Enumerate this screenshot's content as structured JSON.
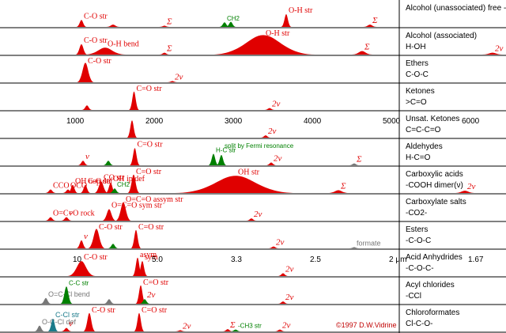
{
  "chart_data": {
    "type": "area",
    "x_axis_cm": {
      "ticks": [
        "1000",
        "2000",
        "3000",
        "4000",
        "5000",
        "6000"
      ],
      "unit": ""
    },
    "x_axis_um": {
      "ticks": [
        "10",
        "5.0",
        "3.3",
        "2.5",
        "2 μm",
        "1.67"
      ]
    },
    "series": [
      {
        "name": "Alcohol (unassociated) free -OH",
        "formula": "",
        "peaks": [
          {
            "x": 1050,
            "h": 0.3,
            "w": 30,
            "color": "#e00000",
            "label": "C-O str"
          },
          {
            "x": 1450,
            "h": 0.1,
            "w": 40,
            "color": "#e00000",
            "label": ""
          },
          {
            "x": 2100,
            "h": 0.05,
            "w": 30,
            "color": "#e00000",
            "label": "Σ"
          },
          {
            "x": 2860,
            "h": 0.2,
            "w": 25,
            "color": "#008000",
            "label": "CH2"
          },
          {
            "x": 2940,
            "h": 0.22,
            "w": 25,
            "color": "#008000",
            "label": ""
          },
          {
            "x": 3640,
            "h": 0.55,
            "w": 30,
            "color": "#e00000",
            "label": "O-H str"
          },
          {
            "x": 4700,
            "h": 0.1,
            "w": 40,
            "color": "#e00000",
            "label": "Σ"
          }
        ]
      },
      {
        "name": "Alcohol (associated)",
        "formula": "H-OH",
        "peaks": [
          {
            "x": 1050,
            "h": 0.45,
            "w": 35,
            "color": "#e00000",
            "label": "C-O str"
          },
          {
            "x": 1350,
            "h": 0.3,
            "w": 120,
            "color": "#e00000",
            "label": "O-H bend"
          },
          {
            "x": 2100,
            "h": 0.08,
            "w": 30,
            "color": "#e00000",
            "label": "Σ"
          },
          {
            "x": 3350,
            "h": 0.85,
            "w": 300,
            "color": "#e00000",
            "label": "O-H str"
          },
          {
            "x": 4600,
            "h": 0.15,
            "w": 60,
            "color": "#e00000",
            "label": "Σ"
          },
          {
            "x": 6250,
            "h": 0.08,
            "w": 60,
            "color": "#e00000",
            "label": "2ν"
          }
        ]
      },
      {
        "name": "Ethers",
        "formula": "C-O-C",
        "peaks": [
          {
            "x": 1100,
            "h": 0.85,
            "w": 50,
            "color": "#e00000",
            "label": "C-O str"
          },
          {
            "x": 2200,
            "h": 0.05,
            "w": 30,
            "color": "#e00000",
            "label": "2ν"
          }
        ]
      },
      {
        "name": "Ketones",
        "formula": ">C=O",
        "peaks": [
          {
            "x": 1120,
            "h": 0.2,
            "w": 25,
            "color": "#e00000",
            "label": ""
          },
          {
            "x": 1715,
            "h": 0.8,
            "w": 30,
            "color": "#e00000",
            "label": "C=O str"
          },
          {
            "x": 3430,
            "h": 0.08,
            "w": 30,
            "color": "#e00000",
            "label": "2ν"
          }
        ]
      },
      {
        "name": "Unsat. Ketones",
        "formula": "C=C-C=O",
        "peaks": [
          {
            "x": 1690,
            "h": 0.75,
            "w": 30,
            "color": "#e00000",
            "label": ""
          },
          {
            "x": 3380,
            "h": 0.1,
            "w": 30,
            "color": "#e00000",
            "label": "2ν"
          }
        ]
      },
      {
        "name": "Aldehydes",
        "formula": "H-C=O",
        "peaks": [
          {
            "x": 1070,
            "h": 0.2,
            "w": 20,
            "color": "#e00000",
            "label": "ν"
          },
          {
            "x": 1390,
            "h": 0.2,
            "w": 25,
            "color": "#008000",
            "label": ""
          },
          {
            "x": 1725,
            "h": 0.75,
            "w": 30,
            "color": "#e00000",
            "label": "C=O str"
          },
          {
            "x": 2720,
            "h": 0.5,
            "w": 25,
            "color": "#008000",
            "label": "H-C str"
          },
          {
            "x": 2820,
            "h": 0.45,
            "w": 25,
            "color": "#008000",
            "label": ""
          },
          {
            "x": 3450,
            "h": 0.12,
            "w": 30,
            "color": "#e00000",
            "label": "2ν"
          },
          {
            "x": 4500,
            "h": 0.08,
            "w": 30,
            "color": "#777777",
            "label": "Σ"
          }
        ]
      },
      {
        "name": "Carboxylic acids",
        "formula": "-COOH dimer(ν)",
        "peaks": [
          {
            "x": 660,
            "h": 0.15,
            "w": 30,
            "color": "#e00000",
            "label": "CCO"
          },
          {
            "x": 880,
            "h": 0.15,
            "w": 30,
            "color": "#e00000",
            "label": "OCO"
          },
          {
            "x": 940,
            "h": 0.35,
            "w": 25,
            "color": "#e00000",
            "label": "OH oop def"
          },
          {
            "x": 1100,
            "h": 0.35,
            "w": 30,
            "color": "#e00000",
            "label": "C-O str"
          },
          {
            "x": 1300,
            "h": 0.5,
            "w": 40,
            "color": "#e00000",
            "label": "CO str"
          },
          {
            "x": 1420,
            "h": 0.45,
            "w": 30,
            "color": "#e00000",
            "label": "OH ip def"
          },
          {
            "x": 1470,
            "h": 0.2,
            "w": 25,
            "color": "#008000",
            "label": "CH2"
          },
          {
            "x": 1710,
            "h": 0.8,
            "w": 35,
            "color": "#e00000",
            "label": "C=O str"
          },
          {
            "x": 3000,
            "h": 0.75,
            "w": 350,
            "color": "#e00000",
            "label": "OH str"
          },
          {
            "x": 4300,
            "h": 0.12,
            "w": 60,
            "color": "#e00000",
            "label": "Σ"
          },
          {
            "x": 5900,
            "h": 0.1,
            "w": 60,
            "color": "#e00000",
            "label": "2ν"
          }
        ]
      },
      {
        "name": "Carboxylate salts",
        "formula": "-CO2-",
        "peaks": [
          {
            "x": 660,
            "h": 0.15,
            "w": 30,
            "color": "#e00000",
            "label": "O=C=O rock"
          },
          {
            "x": 860,
            "h": 0.15,
            "w": 25,
            "color": "#e00000",
            "label": "ν"
          },
          {
            "x": 1400,
            "h": 0.5,
            "w": 40,
            "color": "#e00000",
            "label": "O=C=O sym str"
          },
          {
            "x": 1580,
            "h": 0.8,
            "w": 45,
            "color": "#e00000",
            "label": "O=C=O assym str"
          },
          {
            "x": 3200,
            "h": 0.1,
            "w": 30,
            "color": "#e00000",
            "label": "2ν"
          }
        ]
      },
      {
        "name": "Esters",
        "formula": "-C-O-C",
        "peaks": [
          {
            "x": 1050,
            "h": 0.35,
            "w": 25,
            "color": "#e00000",
            "label": "ν"
          },
          {
            "x": 1240,
            "h": 0.85,
            "w": 50,
            "color": "#e00000",
            "label": "C-O str"
          },
          {
            "x": 1450,
            "h": 0.2,
            "w": 25,
            "color": "#008000",
            "label": ""
          },
          {
            "x": 1740,
            "h": 0.8,
            "w": 30,
            "color": "#e00000",
            "label": "C=O str"
          },
          {
            "x": 3480,
            "h": 0.08,
            "w": 30,
            "color": "#e00000",
            "label": "2ν"
          },
          {
            "x": 4500,
            "h": 0.05,
            "w": 30,
            "color": "#777777",
            "label": "formate"
          }
        ]
      },
      {
        "name": "Acid Anhydrides",
        "formula": "-C-O-C-",
        "peaks": [
          {
            "x": 1050,
            "h": 0.65,
            "w": 80,
            "color": "#e00000",
            "label": "C-O str"
          },
          {
            "x": 1760,
            "h": 0.8,
            "w": 25,
            "color": "#e00000",
            "label": "asym"
          },
          {
            "x": 1820,
            "h": 0.65,
            "w": 25,
            "color": "#e00000",
            "label": "sym"
          },
          {
            "x": 3600,
            "h": 0.12,
            "w": 30,
            "color": "#e00000",
            "label": "2ν"
          }
        ]
      },
      {
        "name": "Acyl chlorides",
        "formula": "-CCl",
        "peaks": [
          {
            "x": 600,
            "h": 0.25,
            "w": 25,
            "color": "#777777",
            "label": "O=C-Cl bend"
          },
          {
            "x": 860,
            "h": 0.75,
            "w": 35,
            "color": "#008000",
            "label": "C-C str"
          },
          {
            "x": 1400,
            "h": 0.2,
            "w": 25,
            "color": "#777777",
            "label": ""
          },
          {
            "x": 1800,
            "h": 0.8,
            "w": 30,
            "color": "#e00000",
            "label": "C=O str"
          },
          {
            "x": 1850,
            "h": 0.2,
            "w": 25,
            "color": "#008000",
            "label": "2ν"
          },
          {
            "x": 3600,
            "h": 0.1,
            "w": 30,
            "color": "#e00000",
            "label": "2ν"
          }
        ]
      },
      {
        "name": "Chloroformates",
        "formula": "Cl-C-O-",
        "peaks": [
          {
            "x": 520,
            "h": 0.25,
            "w": 25,
            "color": "#777777",
            "label": "O-C-Cl def"
          },
          {
            "x": 690,
            "h": 0.55,
            "w": 30,
            "color": "#1a7a8a",
            "label": "C-Cl str"
          },
          {
            "x": 860,
            "h": 0.15,
            "w": 20,
            "color": "#e00000",
            "label": "ν"
          },
          {
            "x": 1150,
            "h": 0.8,
            "w": 35,
            "color": "#e00000",
            "label": "C-O str"
          },
          {
            "x": 1780,
            "h": 0.8,
            "w": 30,
            "color": "#e00000",
            "label": "C=O str"
          },
          {
            "x": 2300,
            "h": 0.05,
            "w": 30,
            "color": "#e00000",
            "label": "2ν"
          },
          {
            "x": 2900,
            "h": 0.1,
            "w": 25,
            "color": "#e00000",
            "label": "Σ"
          },
          {
            "x": 3000,
            "h": 0.08,
            "w": 25,
            "color": "#008000",
            "label": "-CH3 str"
          },
          {
            "x": 3560,
            "h": 0.08,
            "w": 30,
            "color": "#e00000",
            "label": "2ν"
          }
        ]
      }
    ],
    "credit": "©1997 D.W.Vidrine",
    "annotations": [
      "split by Fermi resonance"
    ]
  }
}
